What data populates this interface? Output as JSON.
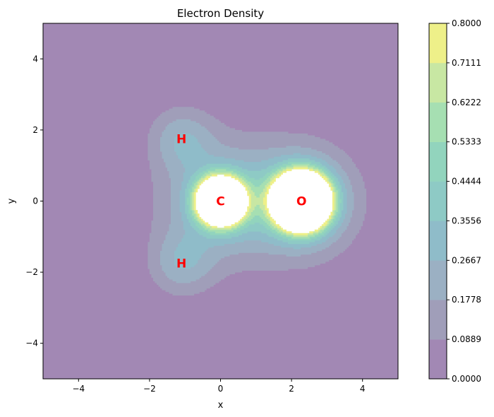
{
  "chart_data": {
    "type": "contour",
    "title": "Electron Density",
    "xlabel": "x",
    "ylabel": "y",
    "xlim": [
      -5,
      5
    ],
    "ylim": [
      -5,
      5
    ],
    "x_ticks": [
      -4,
      -2,
      0,
      2,
      4
    ],
    "y_ticks": [
      -4,
      -2,
      0,
      2,
      4
    ],
    "x_tick_labels": [
      "−4",
      "−2",
      "0",
      "2",
      "4"
    ],
    "y_tick_labels": [
      "−4",
      "−2",
      "0",
      "2",
      "4"
    ],
    "grid": false,
    "alpha": 0.5,
    "colormap": "viridis",
    "levels": [
      0.0,
      0.0889,
      0.1778,
      0.2667,
      0.3556,
      0.4444,
      0.5333,
      0.6222,
      0.7111,
      0.8
    ],
    "colorbar_labels": [
      "0.0000",
      "0.0889",
      "0.1778",
      "0.2667",
      "0.3556",
      "0.4444",
      "0.5333",
      "0.6222",
      "0.7111",
      "0.8000"
    ],
    "band_colors": [
      "#a288b4",
      "#a09eb9",
      "#9bb0c3",
      "#8fbcc9",
      "#8ecac5",
      "#92d4bd",
      "#a6dfb2",
      "#c8e7a3",
      "#eef089"
    ],
    "atoms": [
      {
        "label": "C",
        "x": 0.0,
        "y": 0.0
      },
      {
        "label": "O",
        "x": 2.28,
        "y": 0.0
      },
      {
        "label": "H",
        "x": -1.1,
        "y": 1.75
      },
      {
        "label": "H",
        "x": -1.1,
        "y": -1.75
      }
    ]
  }
}
